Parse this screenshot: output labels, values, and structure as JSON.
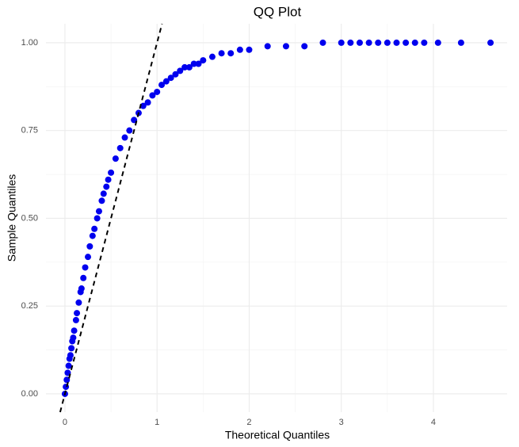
{
  "chart_data": {
    "type": "scatter",
    "title": "QQ Plot",
    "x_label": "Theoretical Quantiles",
    "y_label": "Sample Quantiles",
    "x": [
      0,
      0.01,
      0.02,
      0.03,
      0.04,
      0.05,
      0.06,
      0.07,
      0.08,
      0.09,
      0.1,
      0.12,
      0.13,
      0.15,
      0.17,
      0.18,
      0.2,
      0.22,
      0.25,
      0.27,
      0.3,
      0.32,
      0.35,
      0.37,
      0.4,
      0.42,
      0.45,
      0.47,
      0.5,
      0.55,
      0.6,
      0.65,
      0.7,
      0.75,
      0.8,
      0.85,
      0.9,
      0.95,
      1.0,
      1.05,
      1.1,
      1.15,
      1.2,
      1.25,
      1.3,
      1.35,
      1.4,
      1.45,
      1.5,
      1.6,
      1.7,
      1.8,
      1.9,
      2.0,
      2.2,
      2.4,
      2.6,
      2.8,
      3.0,
      3.1,
      3.2,
      3.3,
      3.4,
      3.5,
      3.6,
      3.7,
      3.8,
      3.9,
      4.05,
      4.3,
      4.62
    ],
    "values": [
      0,
      0.02,
      0.04,
      0.06,
      0.08,
      0.1,
      0.11,
      0.13,
      0.15,
      0.16,
      0.18,
      0.21,
      0.23,
      0.26,
      0.29,
      0.3,
      0.33,
      0.36,
      0.39,
      0.42,
      0.45,
      0.47,
      0.5,
      0.52,
      0.55,
      0.57,
      0.59,
      0.61,
      0.63,
      0.67,
      0.7,
      0.73,
      0.75,
      0.78,
      0.8,
      0.82,
      0.83,
      0.85,
      0.86,
      0.88,
      0.89,
      0.9,
      0.91,
      0.92,
      0.93,
      0.93,
      0.94,
      0.94,
      0.95,
      0.96,
      0.97,
      0.97,
      0.98,
      0.98,
      0.99,
      0.99,
      0.99,
      1,
      1,
      1,
      1,
      1,
      1,
      1,
      1,
      1,
      1,
      1,
      1,
      1,
      1
    ],
    "color": "#0000ee",
    "reference_line": {
      "slope": 1,
      "intercept": 0,
      "color": "#000000"
    },
    "xlim": [
      -0.206,
      4.8
    ],
    "ylim": [
      -0.052,
      1.054
    ],
    "xticks": [
      0,
      1,
      2,
      3,
      4
    ],
    "yticks": [
      {
        "value": 0,
        "label": "0.00"
      },
      {
        "value": 0.25,
        "label": "0.25"
      },
      {
        "value": 0.5,
        "label": "0.50"
      },
      {
        "value": 0.75,
        "label": "0.75"
      },
      {
        "value": 1,
        "label": "1.00"
      }
    ],
    "grid": true
  }
}
